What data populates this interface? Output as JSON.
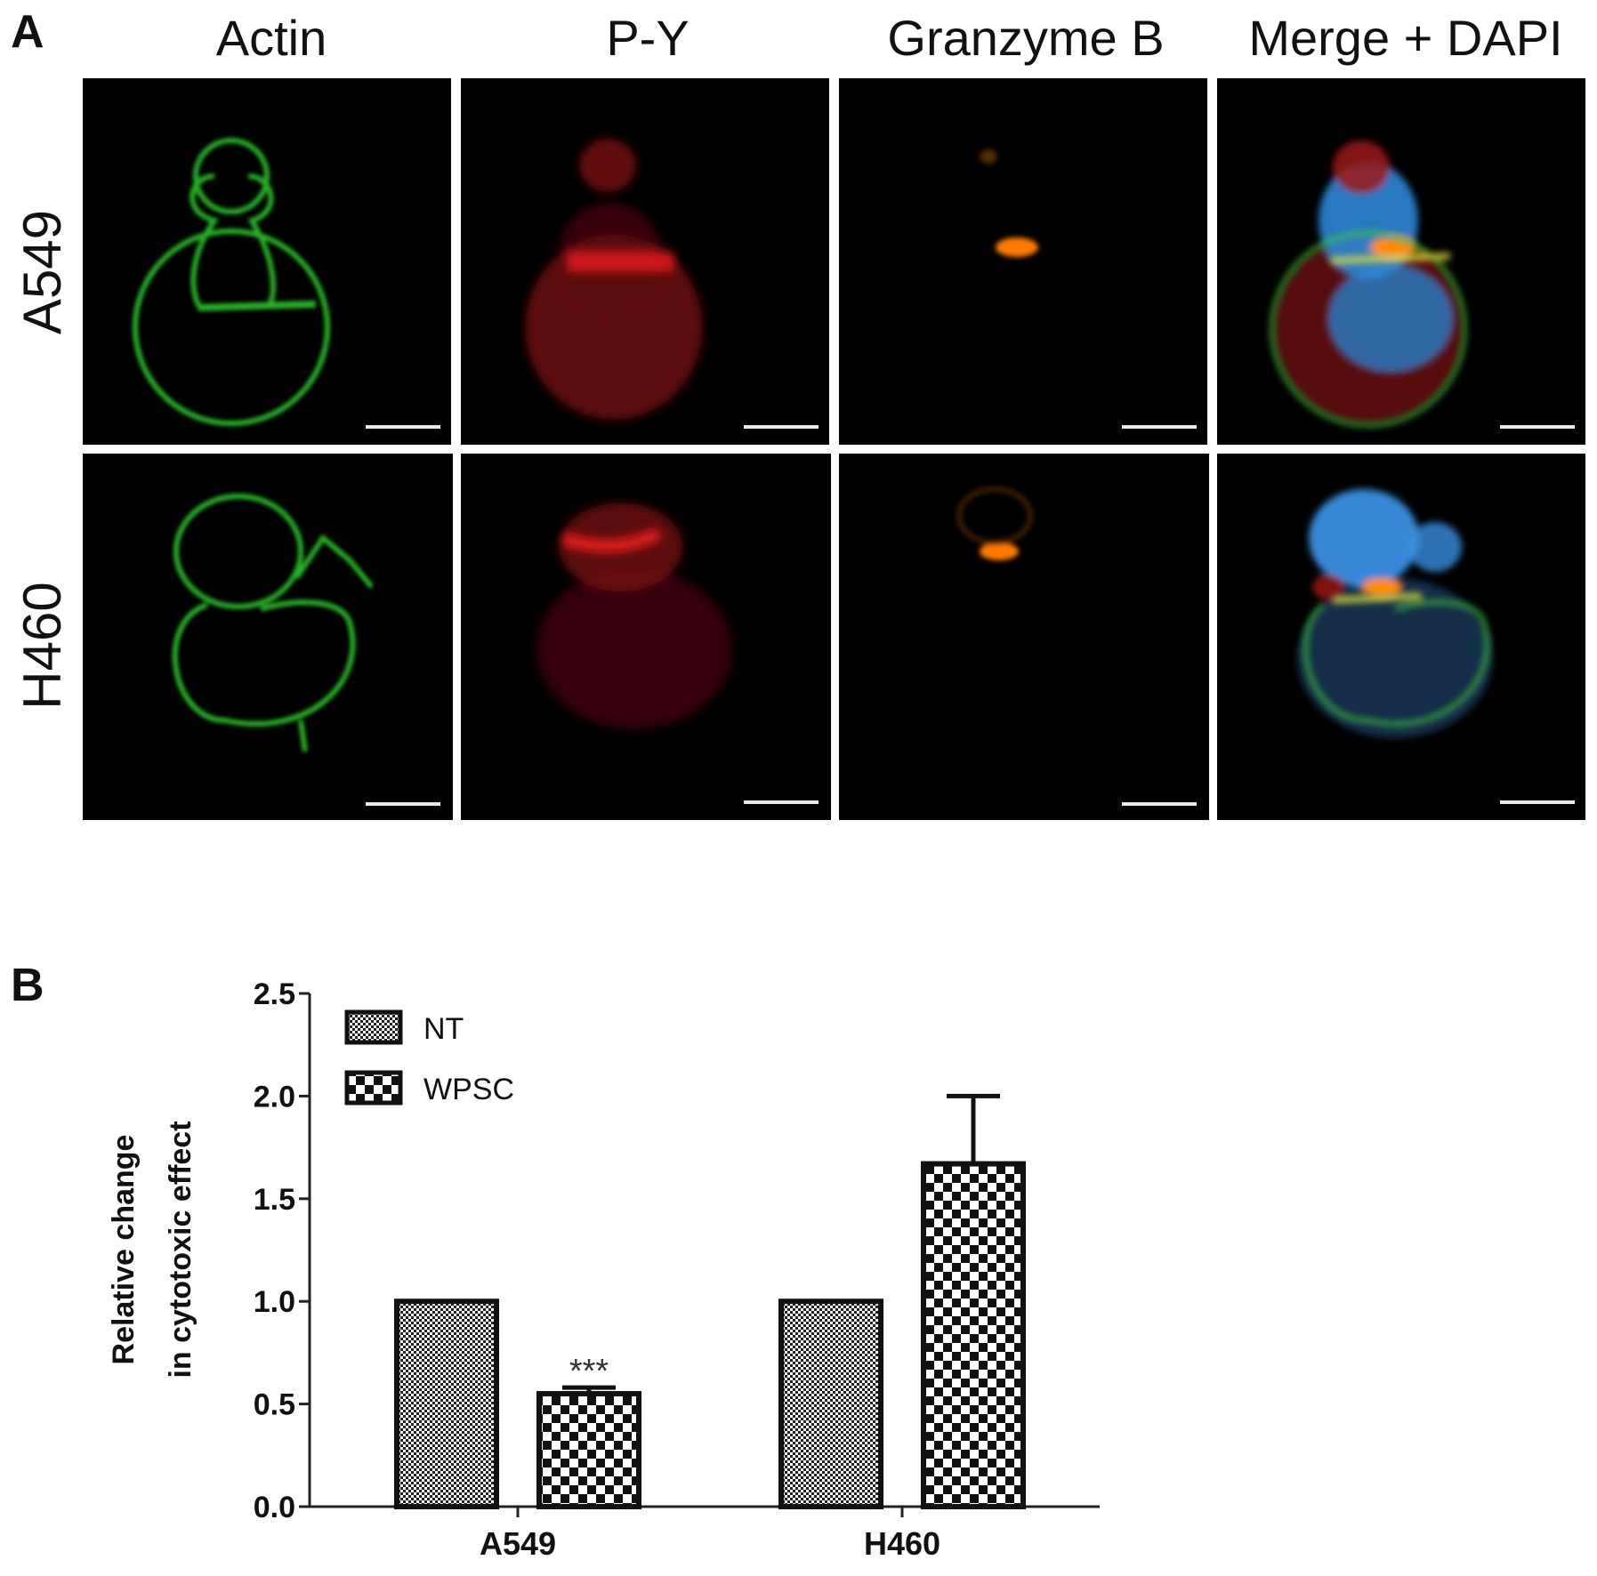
{
  "panel_labels": {
    "a": "A",
    "b": "B"
  },
  "micrograph_grid": {
    "columns": [
      "Actin",
      "P-Y",
      "Granzyme B",
      "Merge + DAPI"
    ],
    "rows": [
      "A549",
      "H460"
    ]
  },
  "chart_data": {
    "type": "bar",
    "categories": [
      "A549",
      "H460"
    ],
    "series": [
      {
        "name": "NT",
        "values": [
          1.0,
          1.0
        ],
        "errors": [
          0,
          0
        ],
        "pattern": "fine-checker"
      },
      {
        "name": "WPSC",
        "values": [
          0.55,
          1.67
        ],
        "errors": [
          0.03,
          0.33
        ],
        "pattern": "coarse-checker"
      }
    ],
    "annotations": [
      {
        "category": "A549",
        "series": "WPSC",
        "text": "***"
      }
    ],
    "ylabel_lines": [
      "Relative change",
      "in cytotoxic effect"
    ],
    "ylim": [
      0,
      2.5
    ],
    "yticks": [
      "0.0",
      "0.5",
      "1.0",
      "1.5",
      "2.0",
      "2.5"
    ],
    "grid": false,
    "legend_position": "top-left"
  }
}
